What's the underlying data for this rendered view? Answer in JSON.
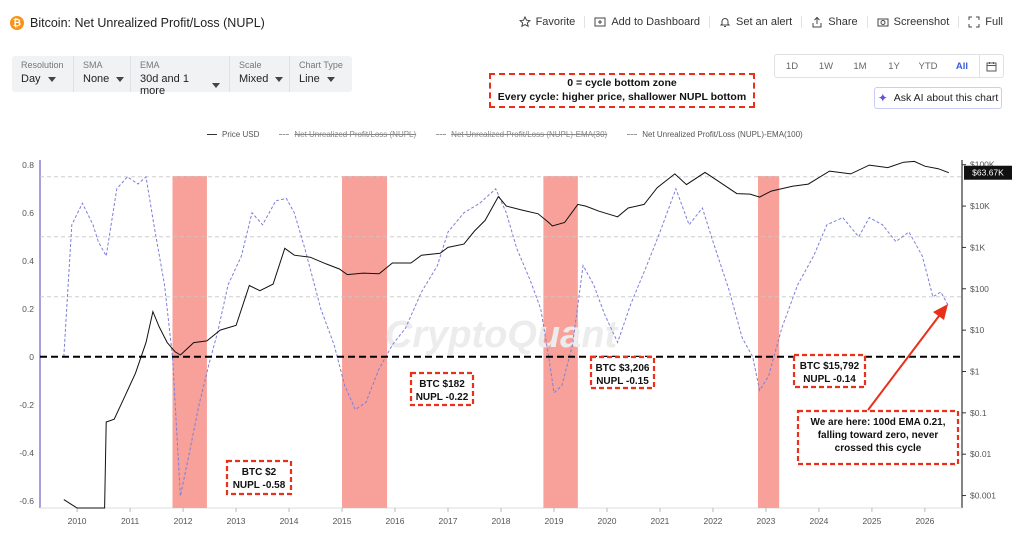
{
  "header": {
    "title": "Bitcoin: Net Unrealized Profit/Loss (NUPL)",
    "actions": [
      "Favorite",
      "Add to Dashboard",
      "Set an alert",
      "Share",
      "Screenshot",
      "Full"
    ]
  },
  "controls": [
    {
      "label": "Resolution",
      "value": "Day"
    },
    {
      "label": "SMA",
      "value": "None"
    },
    {
      "label": "EMA",
      "value": "30d and 1 more"
    },
    {
      "label": "Scale",
      "value": "Mixed"
    },
    {
      "label": "Chart Type",
      "value": "Line"
    }
  ],
  "ranges": [
    "1D",
    "1W",
    "1M",
    "1Y",
    "YTD",
    "All"
  ],
  "active_range": "All",
  "ask_ai": "Ask AI about this chart",
  "legend": [
    {
      "name": "Price USD",
      "struck": false
    },
    {
      "name": "Net Unrealized Profit/Loss (NUPL)",
      "struck": true
    },
    {
      "name": "Net Unrealized Profit/Loss (NUPL)-EMA(30)",
      "struck": true
    },
    {
      "name": "Net Unrealized Profit/Loss (NUPL)-EMA(100)",
      "struck": false
    }
  ],
  "annotations": {
    "top_note": [
      "0 = cycle bottom zone",
      "Every cycle: higher price, shallower NUPL bottom"
    ],
    "cycle_2011": [
      "BTC $2",
      "NUPL -0.58"
    ],
    "cycle_2015": [
      "BTC $182",
      "NUPL -0.22"
    ],
    "cycle_2019": [
      "BTC $3,206",
      "NUPL -0.15"
    ],
    "cycle_2022": [
      "BTC $15,792",
      "NUPL -0.14"
    ],
    "here": [
      "We are here: 100d EMA 0.21,",
      "falling toward zero, never",
      "crossed this cycle"
    ]
  },
  "watermark": "CryptoQuant",
  "price_tag": "$63.67K",
  "chart_data": {
    "type": "line",
    "x_range": [
      2009.3,
      2026.7
    ],
    "x_ticks": [
      "2010",
      "2011",
      "2012",
      "2013",
      "2014",
      "2015",
      "2016",
      "2017",
      "2018",
      "2019",
      "2020",
      "2021",
      "2022",
      "2023",
      "2024",
      "2025",
      "2026"
    ],
    "left_axis": {
      "ticks": [
        "0.8",
        "0.6",
        "0.4",
        "0.2",
        "0",
        "-0.2",
        "-0.4",
        "-0.6"
      ],
      "ylim": [
        -0.63,
        0.82
      ]
    },
    "right_axis": {
      "scale": "log",
      "ticks": [
        "$100K",
        "$10K",
        "$1K",
        "$100",
        "$10",
        "$1",
        "$0.1",
        "$0.01",
        "$0.001"
      ],
      "ylim": [
        0.0005,
        130000
      ]
    },
    "bottom_zones": [
      [
        2011.8,
        2012.45
      ],
      [
        2015.0,
        2015.85
      ],
      [
        2018.8,
        2019.45
      ],
      [
        2022.85,
        2023.25
      ]
    ],
    "reference_lines": [
      0.75,
      0.5,
      0.25
    ],
    "zero_line": 0,
    "series": [
      {
        "name": "Price USD",
        "axis": "right",
        "points": [
          [
            2009.75,
            0.0008
          ],
          [
            2009.9,
            0.0006
          ],
          [
            2010.0,
            0.0005
          ],
          [
            2010.3,
            0.0005
          ],
          [
            2010.52,
            0.0005
          ],
          [
            2010.55,
            0.06
          ],
          [
            2010.7,
            0.07
          ],
          [
            2010.9,
            0.25
          ],
          [
            2011.1,
            0.9
          ],
          [
            2011.3,
            5
          ],
          [
            2011.43,
            28
          ],
          [
            2011.55,
            12
          ],
          [
            2011.7,
            5
          ],
          [
            2011.85,
            3
          ],
          [
            2011.95,
            2.5
          ],
          [
            2012.2,
            5
          ],
          [
            2012.45,
            5.5
          ],
          [
            2012.7,
            10
          ],
          [
            2013.0,
            13
          ],
          [
            2013.25,
            120
          ],
          [
            2013.45,
            90
          ],
          [
            2013.7,
            130
          ],
          [
            2013.92,
            950
          ],
          [
            2014.1,
            650
          ],
          [
            2014.4,
            580
          ],
          [
            2014.7,
            400
          ],
          [
            2014.95,
            300
          ],
          [
            2015.1,
            220
          ],
          [
            2015.4,
            240
          ],
          [
            2015.7,
            230
          ],
          [
            2015.95,
            420
          ],
          [
            2016.3,
            420
          ],
          [
            2016.5,
            650
          ],
          [
            2016.85,
            720
          ],
          [
            2017.0,
            1000
          ],
          [
            2017.3,
            1200
          ],
          [
            2017.5,
            2500
          ],
          [
            2017.7,
            4500
          ],
          [
            2017.95,
            17000
          ],
          [
            2018.1,
            10000
          ],
          [
            2018.4,
            8000
          ],
          [
            2018.7,
            6500
          ],
          [
            2018.9,
            4000
          ],
          [
            2018.97,
            3300
          ],
          [
            2019.2,
            4000
          ],
          [
            2019.45,
            11000
          ],
          [
            2019.6,
            10000
          ],
          [
            2019.85,
            7500
          ],
          [
            2020.2,
            5500
          ],
          [
            2020.4,
            9000
          ],
          [
            2020.7,
            11000
          ],
          [
            2020.95,
            28000
          ],
          [
            2021.28,
            60000
          ],
          [
            2021.5,
            33000
          ],
          [
            2021.85,
            65000
          ],
          [
            2022.1,
            40000
          ],
          [
            2022.45,
            20000
          ],
          [
            2022.7,
            19500
          ],
          [
            2022.88,
            16500
          ],
          [
            2023.1,
            23000
          ],
          [
            2023.5,
            30000
          ],
          [
            2023.8,
            34000
          ],
          [
            2024.2,
            70000
          ],
          [
            2024.6,
            60000
          ],
          [
            2024.95,
            98000
          ],
          [
            2025.3,
            85000
          ],
          [
            2025.6,
            115000
          ],
          [
            2025.8,
            120000
          ],
          [
            2026.0,
            92000
          ],
          [
            2026.25,
            80000
          ],
          [
            2026.45,
            64000
          ]
        ]
      },
      {
        "name": "Net Unrealized Profit/Loss (NUPL)-EMA(100)",
        "axis": "left",
        "points": [
          [
            2009.75,
            0.0
          ],
          [
            2009.9,
            0.55
          ],
          [
            2010.1,
            0.64
          ],
          [
            2010.3,
            0.55
          ],
          [
            2010.4,
            0.48
          ],
          [
            2010.55,
            0.42
          ],
          [
            2010.75,
            0.7
          ],
          [
            2010.95,
            0.75
          ],
          [
            2011.15,
            0.72
          ],
          [
            2011.3,
            0.75
          ],
          [
            2011.45,
            0.55
          ],
          [
            2011.65,
            0.3
          ],
          [
            2011.8,
            0.0
          ],
          [
            2011.95,
            -0.58
          ],
          [
            2012.1,
            -0.42
          ],
          [
            2012.3,
            -0.2
          ],
          [
            2012.5,
            -0.02
          ],
          [
            2012.65,
            0.1
          ],
          [
            2012.85,
            0.3
          ],
          [
            2013.1,
            0.42
          ],
          [
            2013.3,
            0.6
          ],
          [
            2013.5,
            0.55
          ],
          [
            2013.75,
            0.65
          ],
          [
            2013.95,
            0.66
          ],
          [
            2014.1,
            0.6
          ],
          [
            2014.3,
            0.45
          ],
          [
            2014.6,
            0.2
          ],
          [
            2014.85,
            0.05
          ],
          [
            2015.05,
            -0.12
          ],
          [
            2015.25,
            -0.22
          ],
          [
            2015.45,
            -0.19
          ],
          [
            2015.7,
            -0.05
          ],
          [
            2015.95,
            0.05
          ],
          [
            2016.2,
            0.12
          ],
          [
            2016.5,
            0.27
          ],
          [
            2016.8,
            0.38
          ],
          [
            2017.0,
            0.52
          ],
          [
            2017.3,
            0.6
          ],
          [
            2017.6,
            0.64
          ],
          [
            2017.9,
            0.7
          ],
          [
            2018.1,
            0.6
          ],
          [
            2018.3,
            0.45
          ],
          [
            2018.55,
            0.32
          ],
          [
            2018.75,
            0.2
          ],
          [
            2018.9,
            0.0
          ],
          [
            2019.0,
            -0.15
          ],
          [
            2019.15,
            -0.12
          ],
          [
            2019.35,
            0.05
          ],
          [
            2019.55,
            0.38
          ],
          [
            2019.75,
            0.3
          ],
          [
            2019.95,
            0.18
          ],
          [
            2020.2,
            0.06
          ],
          [
            2020.45,
            0.22
          ],
          [
            2020.75,
            0.38
          ],
          [
            2021.0,
            0.52
          ],
          [
            2021.3,
            0.7
          ],
          [
            2021.55,
            0.55
          ],
          [
            2021.8,
            0.62
          ],
          [
            2022.0,
            0.48
          ],
          [
            2022.3,
            0.28
          ],
          [
            2022.55,
            0.08
          ],
          [
            2022.75,
            0.0
          ],
          [
            2022.88,
            -0.14
          ],
          [
            2023.05,
            -0.08
          ],
          [
            2023.3,
            0.12
          ],
          [
            2023.6,
            0.3
          ],
          [
            2023.9,
            0.42
          ],
          [
            2024.15,
            0.55
          ],
          [
            2024.45,
            0.58
          ],
          [
            2024.75,
            0.5
          ],
          [
            2024.95,
            0.58
          ],
          [
            2025.2,
            0.55
          ],
          [
            2025.45,
            0.48
          ],
          [
            2025.7,
            0.52
          ],
          [
            2025.95,
            0.42
          ],
          [
            2026.15,
            0.25
          ],
          [
            2026.3,
            0.27
          ],
          [
            2026.45,
            0.21
          ]
        ]
      }
    ]
  }
}
